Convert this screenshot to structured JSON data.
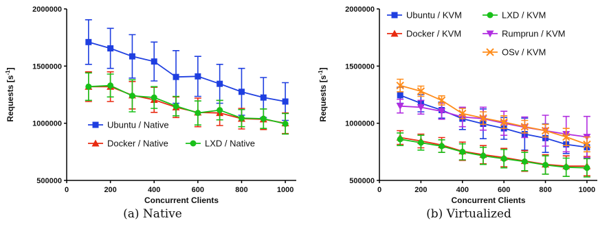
{
  "chart_data": [
    {
      "type": "line",
      "caption": "(a) Native",
      "xlabel": "Concurrent Clients",
      "ylabel": "Requests [s⁻¹]",
      "ylabel_main": "Requests [s",
      "ylabel_sup": "-1",
      "ylabel_tail": "]",
      "xlim": [
        0,
        1050
      ],
      "ylim": [
        500000,
        2000000
      ],
      "xticks": [
        "0",
        "200",
        "400",
        "600",
        "800",
        "1000"
      ],
      "yticks": [
        "500000",
        "1000000",
        "1500000",
        "2000000"
      ],
      "legend_position": "bottom",
      "x": [
        100,
        200,
        300,
        400,
        500,
        600,
        700,
        800,
        900,
        1000
      ],
      "series": [
        {
          "name": "Ubuntu / Native",
          "color": "#1f3fe0",
          "marker": "square",
          "values": [
            1710000,
            1655000,
            1585000,
            1540000,
            1405000,
            1410000,
            1345000,
            1275000,
            1225000,
            1190000
          ],
          "errors": [
            195000,
            175000,
            190000,
            170000,
            230000,
            175000,
            170000,
            205000,
            175000,
            165000
          ]
        },
        {
          "name": "Docker / Native",
          "color": "#e82a10",
          "marker": "triangle",
          "values": [
            1320000,
            1320000,
            1245000,
            1205000,
            1140000,
            1095000,
            1090000,
            1040000,
            1035000,
            1000000
          ],
          "errors": [
            130000,
            130000,
            120000,
            110000,
            90000,
            125000,
            110000,
            90000,
            90000,
            90000
          ]
        },
        {
          "name": "LXD / Native",
          "color": "#19c019",
          "marker": "circle",
          "values": [
            1320000,
            1330000,
            1240000,
            1225000,
            1150000,
            1090000,
            1115000,
            1045000,
            1040000,
            995000
          ],
          "errors": [
            120000,
            100000,
            140000,
            95000,
            85000,
            105000,
            85000,
            75000,
            85000,
            90000
          ]
        }
      ]
    },
    {
      "type": "line",
      "caption": "(b) Virtualized",
      "xlabel": "Concurrent Clients",
      "ylabel": "Requests [s⁻¹]",
      "ylabel_main": "Requests [s",
      "ylabel_sup": "-1",
      "ylabel_tail": "]",
      "xlim": [
        0,
        1050
      ],
      "ylim": [
        500000,
        2000000
      ],
      "xticks": [
        "0",
        "200",
        "400",
        "600",
        "800",
        "1000"
      ],
      "yticks": [
        "500000",
        "1000000",
        "1500000",
        "2000000"
      ],
      "legend_position": "top",
      "x": [
        100,
        200,
        300,
        400,
        500,
        600,
        700,
        800,
        900,
        1000
      ],
      "series": [
        {
          "name": "Ubuntu / KVM",
          "color": "#1f3fe0",
          "marker": "square",
          "values": [
            1245000,
            1175000,
            1115000,
            1040000,
            995000,
            955000,
            905000,
            870000,
            815000,
            790000
          ],
          "errors": [
            70000,
            75000,
            70000,
            95000,
            130000,
            95000,
            140000,
            125000,
            80000,
            90000
          ]
        },
        {
          "name": "Docker / KVM",
          "color": "#e82a10",
          "marker": "triangle",
          "values": [
            875000,
            845000,
            810000,
            755000,
            725000,
            700000,
            670000,
            640000,
            625000,
            625000
          ],
          "errors": [
            60000,
            60000,
            65000,
            80000,
            80000,
            80000,
            90000,
            85000,
            90000,
            85000
          ]
        },
        {
          "name": "LXD / KVM",
          "color": "#19c019",
          "marker": "circle",
          "values": [
            860000,
            830000,
            800000,
            750000,
            715000,
            690000,
            665000,
            635000,
            615000,
            610000
          ],
          "errors": [
            55000,
            65000,
            55000,
            70000,
            75000,
            80000,
            80000,
            80000,
            80000,
            80000
          ]
        },
        {
          "name": "Rumprun / KVM",
          "color": "#b12de0",
          "marker": "triangle-down",
          "values": [
            1150000,
            1140000,
            1105000,
            1055000,
            1040000,
            1000000,
            965000,
            935000,
            905000,
            880000
          ],
          "errors": [
            60000,
            60000,
            70000,
            85000,
            100000,
            105000,
            90000,
            135000,
            155000,
            180000
          ]
        },
        {
          "name": "OSv / KVM",
          "color": "#ff8c1a",
          "marker": "x",
          "values": [
            1330000,
            1280000,
            1200000,
            1085000,
            1045000,
            1010000,
            970000,
            935000,
            880000,
            815000
          ],
          "errors": [
            55000,
            45000,
            40000,
            45000,
            55000,
            55000,
            55000,
            55000,
            75000,
            65000
          ]
        }
      ]
    }
  ]
}
